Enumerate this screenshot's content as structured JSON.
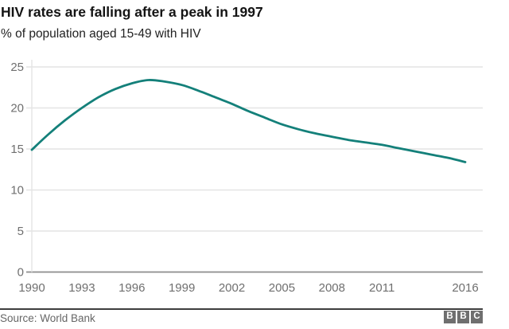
{
  "header": {
    "title": "HIV rates are falling after a peak in 1997",
    "subtitle": "% of population aged 15-49 with HIV"
  },
  "chart_data": {
    "type": "line",
    "title": "HIV rates are falling after a peak in 1997",
    "ylabel": "% of population aged 15-49 with HIV",
    "xlabel": "",
    "x": [
      1990,
      1991,
      1992,
      1993,
      1994,
      1995,
      1996,
      1997,
      1998,
      1999,
      2000,
      2001,
      2002,
      2003,
      2004,
      2005,
      2006,
      2007,
      2008,
      2009,
      2010,
      2011,
      2012,
      2013,
      2014,
      2015,
      2016
    ],
    "series": [
      {
        "name": "% of population aged 15-49 with HIV",
        "values": [
          14.9,
          16.8,
          18.5,
          20.0,
          21.3,
          22.3,
          23.0,
          23.4,
          23.2,
          22.8,
          22.1,
          21.3,
          20.5,
          19.6,
          18.8,
          18.0,
          17.4,
          16.9,
          16.5,
          16.1,
          15.8,
          15.5,
          15.1,
          14.7,
          14.3,
          13.9,
          13.4
        ]
      }
    ],
    "x_tick_labels": [
      "1990",
      "1993",
      "1996",
      "1999",
      "2002",
      "2005",
      "2008",
      "2011",
      "2016"
    ],
    "x_tick_years": [
      1990,
      1993,
      1996,
      1999,
      2002,
      2005,
      2008,
      2011,
      2016
    ],
    "y_ticks": [
      0,
      5,
      10,
      15,
      20,
      25
    ],
    "ylim": [
      0,
      25
    ],
    "xlim": [
      1990,
      2017
    ],
    "grid": "horizontal",
    "legend_position": "none"
  },
  "footer": {
    "source": "Source: World Bank",
    "logo": [
      "B",
      "B",
      "C"
    ]
  },
  "colors": {
    "line": "#14807a",
    "grid": "#e4e4e4",
    "axis_line": "#8c8c8c",
    "tick_text": "#6f6f6f",
    "title_text": "#141414",
    "footer_rule": "#3d3d3d",
    "logo_block": "#6f6f6f"
  }
}
